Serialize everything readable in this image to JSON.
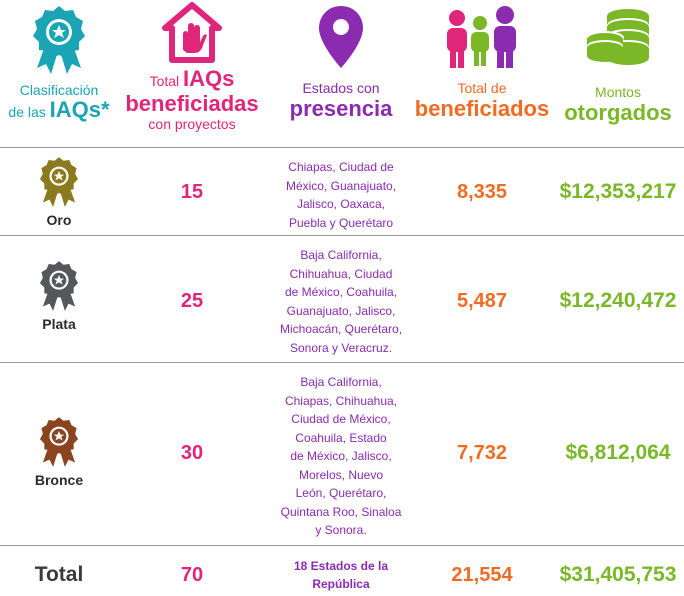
{
  "headers": {
    "classification": {
      "line1": "Clasificación",
      "line2_small": "de las",
      "line2_big": "IAQs*"
    },
    "total_iaqs": {
      "small1": "Total",
      "big1": "IAQs",
      "big2": "beneficiadas",
      "small2": "con proyectos"
    },
    "estados": {
      "small": "Estados con",
      "big": "presencia"
    },
    "beneficiados": {
      "small": "Total de",
      "big": "beneficiados"
    },
    "montos": {
      "small": "Montos",
      "big": "otorgados"
    }
  },
  "rows": [
    {
      "medal": "Oro",
      "iaqs": "15",
      "states": [
        "Chiapas, Ciudad de",
        "México, Guanajuato,",
        "Jalisco, Oaxaca,",
        "Puebla y Querétaro"
      ],
      "beneficiados": "8,335",
      "montos": "$12,353,217"
    },
    {
      "medal": "Plata",
      "iaqs": "25",
      "states": [
        "Baja California,",
        "Chihuahua, Ciudad",
        "de México, Coahuila,",
        "Guanajuato, Jalisco,",
        "Michoacán, Querétaro,",
        "Sonora y Veracruz."
      ],
      "beneficiados": "5,487",
      "montos": "$12,240,472"
    },
    {
      "medal": "Bronce",
      "iaqs": "30",
      "states": [
        "Baja California,",
        "Chiapas, Chihuahua,",
        "Ciudad de México,",
        "Coahuila, Estado",
        "de México, Jalisco,",
        "Morelos, Nuevo",
        "León, Querétaro,",
        "Quintana Roo, Sinaloa",
        "y Sonora."
      ],
      "beneficiados": "7,732",
      "montos": "$6,812,064"
    }
  ],
  "total": {
    "label": "Total",
    "iaqs": "70",
    "states": [
      "18 Estados de la",
      "República"
    ],
    "beneficiados": "21,554",
    "montos": "$31,405,753"
  },
  "colors": {
    "teal": "#1aa4b4",
    "pink": "#e0267b",
    "purple": "#8b2bb0",
    "orange": "#f26b22",
    "green": "#7ab828",
    "gold": "#8c7a1e",
    "silver": "#55575b",
    "bronze": "#8a4520"
  },
  "icons": [
    "award-ribbon-icon",
    "home-hand-icon",
    "map-pin-icon",
    "people-icon",
    "coins-stack-icon",
    "gold-medal-icon",
    "silver-medal-icon",
    "bronze-medal-icon"
  ]
}
